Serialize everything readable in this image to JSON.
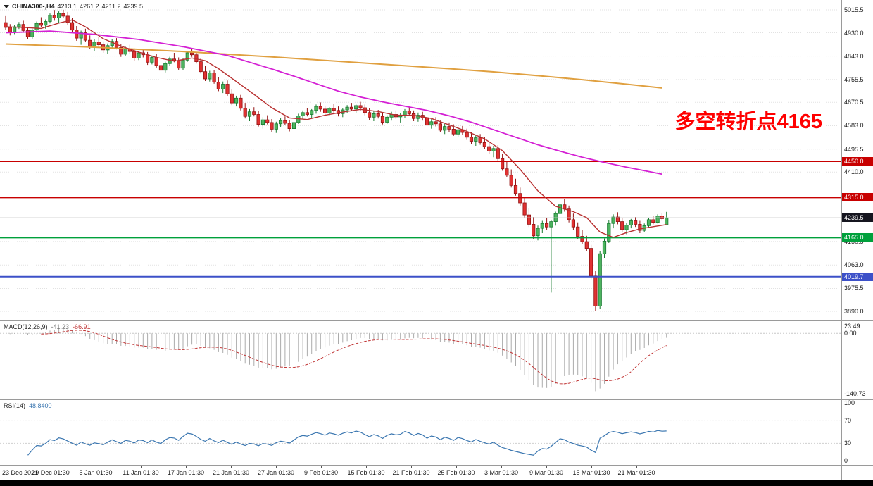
{
  "header": {
    "title": "CHINA300-,H4",
    "open": "4213.1",
    "high": "4261.2",
    "low": "4211.2",
    "close": "4239.5"
  },
  "annotation": {
    "text": "多空转折点4165",
    "color": "#ff0000"
  },
  "price_axis": {
    "ticks": [
      "5015.5",
      "4930.0",
      "4843.0",
      "4755.5",
      "4670.5",
      "4583.0",
      "4495.5",
      "4410.0",
      "4150.5",
      "4063.0",
      "3975.5",
      "3890.0"
    ]
  },
  "macd_panel": {
    "label": "MACD(12,26,9)",
    "main_value": "-41.23",
    "signal_value": "-66.91",
    "scale_top": "23.49",
    "scale_zero": "0.00",
    "scale_bottom": "-140.73",
    "histogram_color": "#ababab",
    "signal_color": "#c03434"
  },
  "rsi_panel": {
    "label": "RSI(14)",
    "value": "48.8400",
    "line_color": "#3a76b0",
    "scale_labels": [
      "100",
      "70",
      "30",
      "0"
    ],
    "levels": [
      70,
      30
    ]
  },
  "time_axis": {
    "labels": [
      "23 Dec 2021",
      "29 Dec 01:30",
      "5 Jan 01:30",
      "11 Jan 01:30",
      "17 Jan 01:30",
      "21 Jan 01:30",
      "27 Jan 01:30",
      "9 Feb 01:30",
      "15 Feb 01:30",
      "21 Feb 01:30",
      "25 Feb 01:30",
      "3 Mar 01:30",
      "9 Mar 01:30",
      "15 Mar 01:30",
      "21 Mar 01:30"
    ]
  },
  "chart_data": {
    "type": "candlestick",
    "title": "CHINA300-,H4",
    "ylim": [
      3890.0,
      5015.5
    ],
    "candle_colors": {
      "up_fill": "#4db35f",
      "up_border": "#167a2e",
      "down_fill": "#e03232",
      "down_border": "#931212"
    },
    "levels": [
      {
        "label": "4450.0",
        "price": 4450.0,
        "color": "#c80000"
      },
      {
        "label": "4315.0",
        "price": 4315.0,
        "color": "#c80000"
      },
      {
        "label": "4165.0",
        "price": 4165.0,
        "color": "#00a03c"
      },
      {
        "label": "4019.7",
        "price": 4019.7,
        "color": "#3c50c8"
      }
    ],
    "current_price": {
      "label": "4239.5",
      "price": 4239.5,
      "tag_bg": "#15151f"
    },
    "moving_averages": [
      {
        "name": "slow-ma-line",
        "color": "#e0a040",
        "width": 2,
        "points": [
          [
            0,
            4888
          ],
          [
            20,
            4876
          ],
          [
            40,
            4860
          ],
          [
            60,
            4840
          ],
          [
            80,
            4818
          ],
          [
            100,
            4796
          ],
          [
            110,
            4784
          ],
          [
            120,
            4770
          ],
          [
            130,
            4755
          ],
          [
            140,
            4738
          ],
          [
            148,
            4724
          ]
        ]
      },
      {
        "name": "medium-ma-line",
        "color": "#d420d4",
        "width": 1.8,
        "points": [
          [
            0,
            4930
          ],
          [
            10,
            4936
          ],
          [
            20,
            4924
          ],
          [
            30,
            4905
          ],
          [
            40,
            4878
          ],
          [
            50,
            4845
          ],
          [
            55,
            4820
          ],
          [
            60,
            4795
          ],
          [
            65,
            4768
          ],
          [
            70,
            4740
          ],
          [
            75,
            4712
          ],
          [
            80,
            4690
          ],
          [
            85,
            4672
          ],
          [
            90,
            4656
          ],
          [
            95,
            4640
          ],
          [
            100,
            4620
          ],
          [
            105,
            4596
          ],
          [
            110,
            4568
          ],
          [
            115,
            4540
          ],
          [
            120,
            4512
          ],
          [
            125,
            4488
          ],
          [
            130,
            4465
          ],
          [
            135,
            4446
          ],
          [
            140,
            4428
          ],
          [
            145,
            4412
          ],
          [
            148,
            4402
          ]
        ]
      },
      {
        "name": "fast-ma-line",
        "color": "#b83030",
        "width": 1.4,
        "points": [
          [
            0,
            4952
          ],
          [
            4,
            4950
          ],
          [
            8,
            4946
          ],
          [
            12,
            4966
          ],
          [
            15,
            4978
          ],
          [
            18,
            4952
          ],
          [
            22,
            4908
          ],
          [
            26,
            4880
          ],
          [
            30,
            4858
          ],
          [
            34,
            4838
          ],
          [
            38,
            4824
          ],
          [
            42,
            4836
          ],
          [
            45,
            4826
          ],
          [
            48,
            4796
          ],
          [
            52,
            4748
          ],
          [
            56,
            4700
          ],
          [
            60,
            4650
          ],
          [
            64,
            4612
          ],
          [
            68,
            4606
          ],
          [
            72,
            4622
          ],
          [
            76,
            4634
          ],
          [
            80,
            4644
          ],
          [
            84,
            4636
          ],
          [
            88,
            4622
          ],
          [
            92,
            4622
          ],
          [
            96,
            4610
          ],
          [
            100,
            4586
          ],
          [
            104,
            4562
          ],
          [
            108,
            4534
          ],
          [
            112,
            4490
          ],
          [
            116,
            4420
          ],
          [
            120,
            4340
          ],
          [
            124,
            4282
          ],
          [
            128,
            4262
          ],
          [
            131,
            4240
          ],
          [
            134,
            4186
          ],
          [
            137,
            4166
          ],
          [
            140,
            4184
          ],
          [
            143,
            4198
          ],
          [
            146,
            4206
          ],
          [
            149,
            4214
          ]
        ]
      }
    ],
    "candles_ohlc": [
      [
        4968,
        4992,
        4940,
        4950
      ],
      [
        4950,
        4962,
        4920,
        4933
      ],
      [
        4933,
        4958,
        4925,
        4952
      ],
      [
        4952,
        4970,
        4944,
        4961
      ],
      [
        4961,
        4975,
        4930,
        4938
      ],
      [
        4938,
        4950,
        4905,
        4915
      ],
      [
        4915,
        4945,
        4908,
        4940
      ],
      [
        4940,
        4972,
        4935,
        4965
      ],
      [
        4965,
        4988,
        4950,
        4958
      ],
      [
        4958,
        4980,
        4945,
        4972
      ],
      [
        4972,
        5002,
        4965,
        4995
      ],
      [
        4995,
        5015,
        4975,
        4985
      ],
      [
        4985,
        5010,
        4968,
        5002
      ],
      [
        5002,
        5015.5,
        4985,
        4992
      ],
      [
        4992,
        5008,
        4960,
        4968
      ],
      [
        4968,
        4985,
        4930,
        4940
      ],
      [
        4940,
        4955,
        4900,
        4910
      ],
      [
        4910,
        4938,
        4885,
        4930
      ],
      [
        4930,
        4945,
        4895,
        4902
      ],
      [
        4902,
        4920,
        4870,
        4880
      ],
      [
        4880,
        4905,
        4862,
        4895
      ],
      [
        4895,
        4915,
        4878,
        4885
      ],
      [
        4885,
        4898,
        4855,
        4866
      ],
      [
        4866,
        4890,
        4850,
        4882
      ],
      [
        4882,
        4905,
        4870,
        4898
      ],
      [
        4898,
        4910,
        4868,
        4875
      ],
      [
        4875,
        4888,
        4840,
        4850
      ],
      [
        4850,
        4878,
        4842,
        4870
      ],
      [
        4870,
        4885,
        4852,
        4860
      ],
      [
        4860,
        4872,
        4825,
        4835
      ],
      [
        4835,
        4862,
        4828,
        4855
      ],
      [
        4855,
        4870,
        4838,
        4848
      ],
      [
        4848,
        4858,
        4810,
        4820
      ],
      [
        4820,
        4845,
        4812,
        4838
      ],
      [
        4838,
        4852,
        4800,
        4808
      ],
      [
        4808,
        4830,
        4780,
        4790
      ],
      [
        4790,
        4822,
        4782,
        4815
      ],
      [
        4815,
        4840,
        4805,
        4832
      ],
      [
        4832,
        4855,
        4820,
        4826
      ],
      [
        4826,
        4838,
        4790,
        4798
      ],
      [
        4798,
        4835,
        4792,
        4828
      ],
      [
        4828,
        4862,
        4822,
        4855
      ],
      [
        4855,
        4872,
        4840,
        4848
      ],
      [
        4848,
        4858,
        4815,
        4822
      ],
      [
        4822,
        4835,
        4778,
        4785
      ],
      [
        4785,
        4805,
        4750,
        4758
      ],
      [
        4758,
        4788,
        4748,
        4780
      ],
      [
        4780,
        4792,
        4740,
        4746
      ],
      [
        4746,
        4765,
        4712,
        4720
      ],
      [
        4720,
        4748,
        4705,
        4738
      ],
      [
        4738,
        4752,
        4695,
        4702
      ],
      [
        4702,
        4718,
        4660,
        4668
      ],
      [
        4668,
        4695,
        4655,
        4686
      ],
      [
        4686,
        4698,
        4640,
        4648
      ],
      [
        4648,
        4668,
        4610,
        4618
      ],
      [
        4618,
        4645,
        4600,
        4635
      ],
      [
        4635,
        4652,
        4618,
        4625
      ],
      [
        4625,
        4638,
        4580,
        4588
      ],
      [
        4588,
        4615,
        4572,
        4605
      ],
      [
        4605,
        4622,
        4588,
        4595
      ],
      [
        4595,
        4608,
        4560,
        4570
      ],
      [
        4570,
        4598,
        4556,
        4590
      ],
      [
        4590,
        4612,
        4578,
        4602
      ],
      [
        4602,
        4618,
        4585,
        4592
      ],
      [
        4592,
        4605,
        4562,
        4572
      ],
      [
        4572,
        4600,
        4565,
        4595
      ],
      [
        4595,
        4628,
        4590,
        4620
      ],
      [
        4620,
        4640,
        4608,
        4632
      ],
      [
        4632,
        4650,
        4618,
        4625
      ],
      [
        4625,
        4645,
        4612,
        4640
      ],
      [
        4640,
        4662,
        4628,
        4655
      ],
      [
        4655,
        4670,
        4635,
        4645
      ],
      [
        4645,
        4658,
        4620,
        4630
      ],
      [
        4630,
        4652,
        4622,
        4648
      ],
      [
        4648,
        4665,
        4632,
        4640
      ],
      [
        4640,
        4655,
        4618,
        4628
      ],
      [
        4628,
        4648,
        4615,
        4642
      ],
      [
        4642,
        4660,
        4630,
        4652
      ],
      [
        4652,
        4668,
        4638,
        4645
      ],
      [
        4645,
        4662,
        4630,
        4658
      ],
      [
        4658,
        4672,
        4640,
        4650
      ],
      [
        4650,
        4662,
        4622,
        4632
      ],
      [
        4632,
        4648,
        4605,
        4615
      ],
      [
        4615,
        4638,
        4600,
        4628
      ],
      [
        4628,
        4642,
        4610,
        4618
      ],
      [
        4618,
        4630,
        4588,
        4596
      ],
      [
        4596,
        4622,
        4590,
        4615
      ],
      [
        4615,
        4635,
        4602,
        4625
      ],
      [
        4625,
        4640,
        4608,
        4616
      ],
      [
        4616,
        4630,
        4595,
        4620
      ],
      [
        4620,
        4645,
        4612,
        4638
      ],
      [
        4638,
        4652,
        4620,
        4628
      ],
      [
        4628,
        4640,
        4600,
        4610
      ],
      [
        4610,
        4632,
        4598,
        4622
      ],
      [
        4622,
        4635,
        4602,
        4612
      ],
      [
        4612,
        4622,
        4578,
        4585
      ],
      [
        4585,
        4608,
        4572,
        4598
      ],
      [
        4598,
        4615,
        4580,
        4590
      ],
      [
        4590,
        4602,
        4558,
        4566
      ],
      [
        4566,
        4590,
        4552,
        4580
      ],
      [
        4580,
        4595,
        4560,
        4570
      ],
      [
        4570,
        4588,
        4545,
        4552
      ],
      [
        4552,
        4578,
        4540,
        4568
      ],
      [
        4568,
        4582,
        4548,
        4558
      ],
      [
        4558,
        4572,
        4530,
        4540
      ],
      [
        4540,
        4560,
        4515,
        4525
      ],
      [
        4525,
        4548,
        4508,
        4538
      ],
      [
        4538,
        4552,
        4512,
        4520
      ],
      [
        4520,
        4540,
        4495,
        4505
      ],
      [
        4505,
        4522,
        4478,
        4488
      ],
      [
        4488,
        4508,
        4465,
        4498
      ],
      [
        4498,
        4510,
        4452,
        4460
      ],
      [
        4460,
        4478,
        4415,
        4422
      ],
      [
        4422,
        4448,
        4390,
        4398
      ],
      [
        4398,
        4420,
        4352,
        4360
      ],
      [
        4360,
        4385,
        4322,
        4330
      ],
      [
        4330,
        4352,
        4285,
        4295
      ],
      [
        4295,
        4318,
        4240,
        4250
      ],
      [
        4250,
        4275,
        4205,
        4215
      ],
      [
        4215,
        4242,
        4160,
        4172
      ],
      [
        4172,
        4210,
        4155,
        4200
      ],
      [
        4200,
        4228,
        4182,
        4218
      ],
      [
        4218,
        4240,
        4195,
        4205
      ],
      [
        4205,
        4232,
        3960,
        4225
      ],
      [
        4225,
        4262,
        4210,
        4255
      ],
      [
        4255,
        4298,
        4240,
        4288
      ],
      [
        4288,
        4310,
        4262,
        4272
      ],
      [
        4272,
        4285,
        4222,
        4232
      ],
      [
        4232,
        4255,
        4195,
        4205
      ],
      [
        4205,
        4222,
        4160,
        4170
      ],
      [
        4170,
        4195,
        4140,
        4150
      ],
      [
        4150,
        4172,
        4115,
        4125
      ],
      [
        4125,
        4138,
        4010,
        4022
      ],
      [
        4022,
        4040,
        3890,
        3910
      ],
      [
        3910,
        4115,
        3900,
        4105
      ],
      [
        4105,
        4162,
        4088,
        4152
      ],
      [
        4152,
        4230,
        4145,
        4218
      ],
      [
        4218,
        4252,
        4200,
        4242
      ],
      [
        4242,
        4260,
        4215,
        4225
      ],
      [
        4225,
        4240,
        4185,
        4195
      ],
      [
        4195,
        4220,
        4178,
        4212
      ],
      [
        4212,
        4235,
        4200,
        4228
      ],
      [
        4228,
        4242,
        4205,
        4215
      ],
      [
        4215,
        4228,
        4182,
        4192
      ],
      [
        4192,
        4218,
        4185,
        4210
      ],
      [
        4210,
        4240,
        4202,
        4232
      ],
      [
        4232,
        4245,
        4215,
        4222
      ],
      [
        4222,
        4252,
        4218,
        4246
      ],
      [
        4246,
        4258,
        4228,
        4236
      ],
      [
        4213.1,
        4261.2,
        4211.2,
        4239.5
      ]
    ],
    "indicators": [
      {
        "name": "MACD",
        "params": "12,26,9",
        "values": [
          -41.23,
          -66.91
        ]
      },
      {
        "name": "RSI",
        "params": "14",
        "value": 48.84
      }
    ]
  }
}
